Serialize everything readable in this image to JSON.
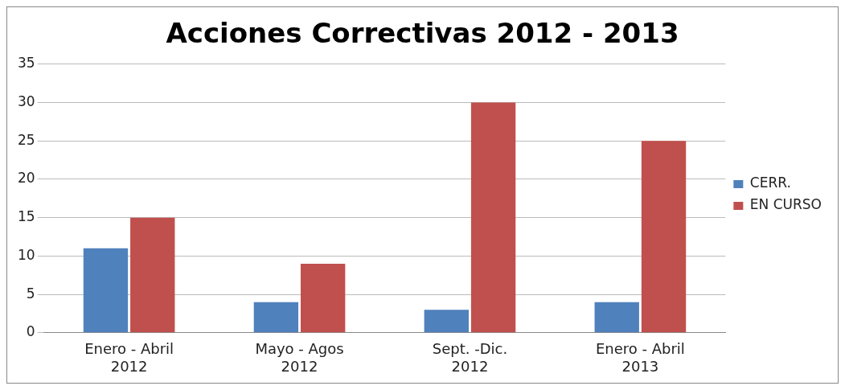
{
  "chart_data": {
    "type": "bar",
    "title": "Acciones Correctivas 2012 - 2013",
    "categories": [
      "Enero - Abril\n2012",
      "Mayo - Agos\n2012",
      "Sept. -Dic.\n2012",
      "Enero - Abril\n2013"
    ],
    "series": [
      {
        "name": "CERR.",
        "color": "#4f81bd",
        "values": [
          11,
          4,
          3,
          4
        ]
      },
      {
        "name": "EN CURSO",
        "color": "#c0504d",
        "values": [
          15,
          9,
          30,
          25
        ]
      }
    ],
    "ylim": [
      0,
      35
    ],
    "yticks": [
      0,
      5,
      10,
      15,
      20,
      25,
      30,
      35
    ],
    "grid": "y",
    "legend": "right"
  }
}
